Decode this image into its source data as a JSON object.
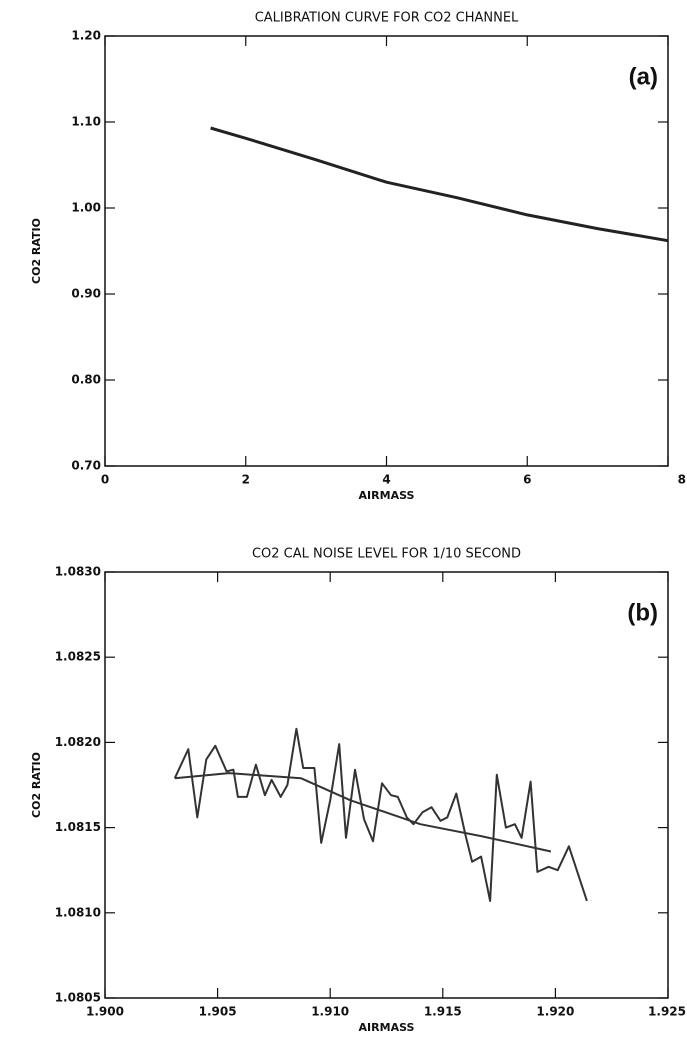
{
  "chart_data": [
    {
      "type": "line",
      "title": "CALIBRATION CURVE FOR CO2 CHANNEL",
      "annotation": "(a)",
      "x_label": "AIRMASS",
      "y_label": "CO2 RATIO",
      "xlim": [
        0,
        8
      ],
      "xticks": [
        0,
        2,
        4,
        6,
        8
      ],
      "ylim": [
        0.7,
        1.2
      ],
      "yticks": [
        {
          "value": 0.7,
          "label": "0.70"
        },
        {
          "value": 0.8,
          "label": "0.80"
        },
        {
          "value": 0.9,
          "label": "0.90"
        },
        {
          "value": 1.0,
          "label": "1.00"
        },
        {
          "value": 1.1,
          "label": "1.10"
        },
        {
          "value": 1.2,
          "label": "1.20"
        }
      ],
      "series": [
        {
          "color": "#222222",
          "x": [
            1.5,
            2,
            3,
            4,
            5,
            6,
            7,
            8
          ],
          "values": [
            1.093,
            1.081,
            1.056,
            1.03,
            1.012,
            0.992,
            0.976,
            0.962
          ]
        }
      ]
    },
    {
      "type": "line",
      "title": "CO2 CAL  NOISE LEVEL FOR 1/10 SECOND",
      "annotation": "(b)",
      "x_label": "AIRMASS",
      "y_label": "CO2 RATIO",
      "xlim": [
        1.9,
        1.925
      ],
      "xticks": [
        {
          "value": 1.9,
          "label": "1.900"
        },
        1.905,
        {
          "value": 1.91,
          "label": "1.910"
        },
        1.915,
        {
          "value": 1.92,
          "label": "1.920"
        },
        1.925
      ],
      "ylim": [
        1.0805,
        1.083
      ],
      "yticks": [
        1.0805,
        {
          "value": 1.081,
          "label": "1.0810"
        },
        1.0815,
        {
          "value": 1.082,
          "label": "1.0820"
        },
        1.0825,
        {
          "value": 1.083,
          "label": "1.0830"
        }
      ],
      "series": [
        {
          "color": "#333333",
          "x": [
            1.9031,
            1.9037,
            1.9041,
            1.9045,
            1.9049,
            1.9054,
            1.9057,
            1.9059,
            1.9063,
            1.9067,
            1.9071,
            1.9074,
            1.9078,
            1.9081,
            1.9085,
            1.9088,
            1.9093,
            1.9096,
            1.91,
            1.9104,
            1.9107,
            1.9111,
            1.9115,
            1.9119,
            1.9123,
            1.9127,
            1.913,
            1.9134,
            1.9137,
            1.9141,
            1.9145,
            1.9149,
            1.9152,
            1.9156,
            1.916,
            1.9163,
            1.9167,
            1.9171,
            1.9174,
            1.9178,
            1.9182,
            1.9185,
            1.9189,
            1.9192,
            1.9197,
            1.9201,
            1.9206,
            1.9214
          ],
          "values": [
            1.08179,
            1.08196,
            1.08156,
            1.0819,
            1.08198,
            1.08183,
            1.08184,
            1.08168,
            1.08168,
            1.08187,
            1.08169,
            1.08178,
            1.08168,
            1.08175,
            1.08208,
            1.08185,
            1.08185,
            1.08141,
            1.08166,
            1.08199,
            1.08144,
            1.08184,
            1.08155,
            1.08142,
            1.08176,
            1.08169,
            1.08168,
            1.08156,
            1.08152,
            1.08159,
            1.08162,
            1.08154,
            1.08156,
            1.0817,
            1.08146,
            1.0813,
            1.08133,
            1.08107,
            1.08181,
            1.0815,
            1.08152,
            1.08144,
            1.08177,
            1.08124,
            1.08127,
            1.08125,
            1.08139,
            1.08107
          ]
        },
        {
          "color": "#333333",
          "x": [
            1.9031,
            1.9055,
            1.9087,
            1.9109,
            1.914,
            1.9167,
            1.9198
          ],
          "values": [
            1.08179,
            1.08182,
            1.08179,
            1.08166,
            1.08152,
            1.08145,
            1.08136
          ]
        }
      ]
    }
  ]
}
